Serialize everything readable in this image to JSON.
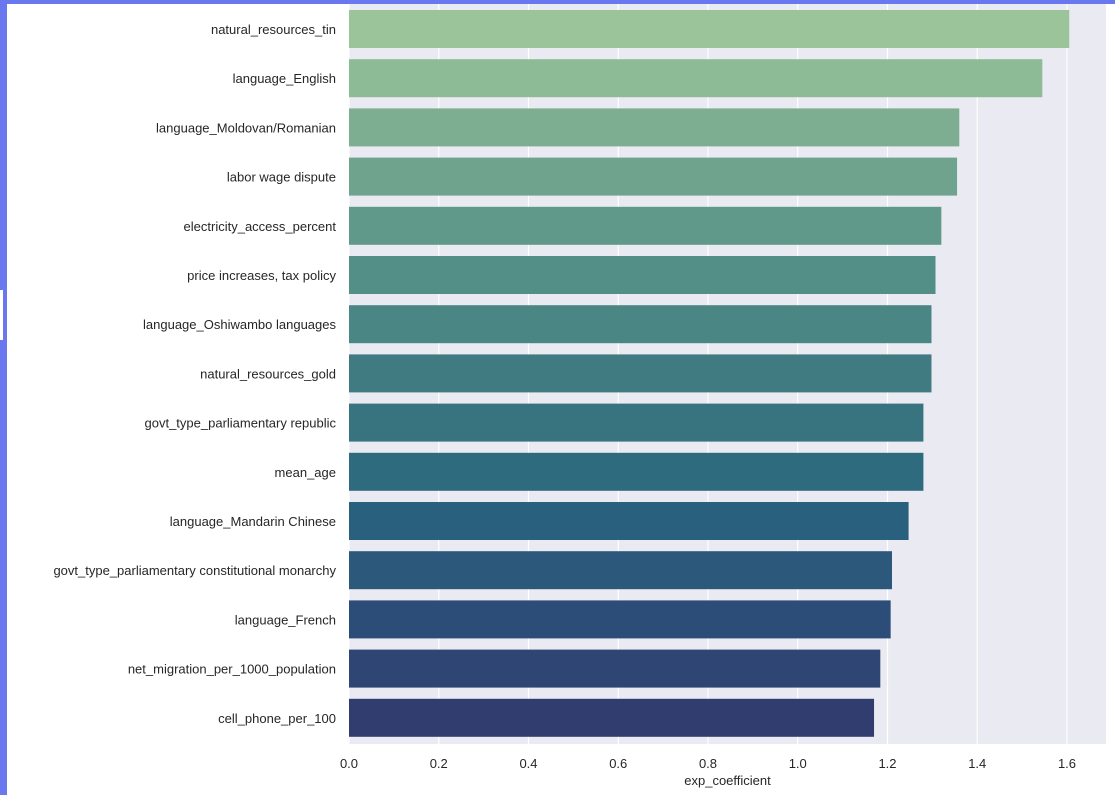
{
  "chart_data": {
    "type": "bar",
    "orientation": "horizontal",
    "xlabel": "exp_coefficient",
    "ylabel": "",
    "xlim": [
      0,
      1.7
    ],
    "xticks": [
      "0.0",
      "0.2",
      "0.4",
      "0.6",
      "0.8",
      "1.0",
      "1.2",
      "1.4",
      "1.6"
    ],
    "grid": true,
    "categories": [
      "natural_resources_tin",
      "language_English",
      "language_Moldovan/Romanian",
      "labor wage dispute",
      "electricity_access_percent",
      "price increases, tax policy",
      "language_Oshiwambo languages",
      "natural_resources_gold",
      "govt_type_parliamentary republic",
      "mean_age",
      "language_Mandarin Chinese",
      "govt_type_parliamentary constitutional monarchy",
      "language_French",
      "net_migration_per_1000_population",
      "cell_phone_per_100"
    ],
    "values": [
      1.605,
      1.545,
      1.36,
      1.355,
      1.32,
      1.307,
      1.298,
      1.298,
      1.28,
      1.28,
      1.247,
      1.21,
      1.207,
      1.184,
      1.17
    ],
    "colors": [
      "#9bc49a",
      "#8dbb95",
      "#7eae92",
      "#6fa38e",
      "#60998a",
      "#548f87",
      "#498684",
      "#407b81",
      "#377480",
      "#2f6b7e",
      "#29607d",
      "#2b587b",
      "#2c4d78",
      "#2f4574",
      "#313d6e"
    ]
  },
  "theme": {
    "plot_background": "#eaeaf2",
    "grid_color": "#ffffff",
    "frame_color": "#6a78f0"
  }
}
